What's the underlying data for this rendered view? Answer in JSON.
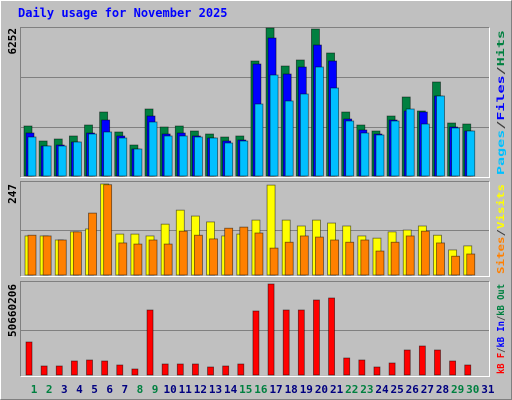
{
  "chart_data": {
    "type": "bar",
    "title": "Daily usage for November 2025",
    "title_color": "#0000ff",
    "categories": [
      "1",
      "2",
      "3",
      "4",
      "5",
      "6",
      "7",
      "8",
      "9",
      "10",
      "11",
      "12",
      "13",
      "14",
      "15",
      "16",
      "17",
      "18",
      "19",
      "20",
      "21",
      "22",
      "23",
      "24",
      "25",
      "26",
      "27",
      "28",
      "29",
      "30",
      "31"
    ],
    "label_colors": [
      "#008040",
      "#008040",
      "#000080",
      "#000080",
      "#000080",
      "#000080",
      "#000080",
      "#008040",
      "#008040",
      "#000080",
      "#000080",
      "#000080",
      "#000080",
      "#000080",
      "#008040",
      "#008040",
      "#000080",
      "#000080",
      "#000080",
      "#000080",
      "#000080",
      "#008040",
      "#008040",
      "#000080",
      "#000080",
      "#000080",
      "#000080",
      "#000080",
      "#008040",
      "#008040",
      "#000080"
    ],
    "legend_separator": "/",
    "grid": true,
    "panels": [
      {
        "ylim": [
          0,
          6252
        ],
        "yticks": [
          6252
        ],
        "series": [
          {
            "name": "Pages",
            "color": "#00c0ff",
            "values": [
              1647,
              1267,
              1267,
              1436,
              1774,
              1859,
              1605,
              1140,
              2281,
              1690,
              1690,
              1647,
              1605,
              1394,
              1478,
              3041,
              4266,
              3168,
              3464,
              4604,
              3717,
              2323,
              1816,
              1732,
              2323,
              2830,
              2196,
              3379,
              2028,
              1901,
              0
            ]
          },
          {
            "name": "Files",
            "color": "#0000ff",
            "values": [
              1816,
              1267,
              1309,
              1436,
              1816,
              2365,
              1690,
              1140,
              2534,
              1774,
              1816,
              1690,
              1605,
              1478,
              1521,
              4731,
              5829,
              4308,
              4604,
              5533,
              4858,
              2408,
              1943,
              1774,
              2365,
              2746,
              2703,
              3379,
              2070,
              1901,
              0
            ]
          },
          {
            "name": "Hits",
            "color": "#008040",
            "values": [
              2112,
              1478,
              1563,
              1690,
              2154,
              2703,
              1859,
              1309,
              2830,
              2070,
              2112,
              1901,
              1774,
              1647,
              1690,
              4858,
              6252,
              4646,
              4900,
              6209,
              5196,
              2703,
              2154,
              1901,
              2534,
              3337,
              2746,
              3971,
              2239,
              2196,
              0
            ]
          }
        ]
      },
      {
        "ylim": [
          0,
          247
        ],
        "yticks": [
          247
        ],
        "series": [
          {
            "name": "Sites",
            "color": "#ff8000",
            "values": [
              108,
              106,
              95,
              117,
              168,
              245,
              87,
              84,
              95,
              84,
              119,
              108,
              98,
              127,
              130,
              114,
              73,
              89,
              106,
              103,
              95,
              89,
              95,
              65,
              89,
              106,
              119,
              87,
              51,
              57,
              0
            ]
          },
          {
            "name": "Visits",
            "color": "#ffff00",
            "values": [
              106,
              106,
              95,
              117,
              125,
              247,
              111,
              111,
              106,
              138,
              176,
              160,
              144,
              106,
              111,
              149,
              244,
              149,
              133,
              149,
              141,
              133,
              106,
              100,
              117,
              122,
              133,
              108,
              68,
              79,
              0
            ]
          }
        ]
      },
      {
        "ylim": [
          0,
          50660206
        ],
        "yticks": [
          50660206
        ],
        "series": [
          {
            "name": "kB F",
            "color": "#ff0000",
            "values": [
              18371298,
              5010354,
              5010354,
              7793884,
              8350590,
              7793884,
              5567060,
              3340236,
              36185890,
              6123766,
              6123766,
              6123766,
              4453648,
              5010354,
              6123766,
              35629184,
              50660206,
              36185890,
              36185890,
              41752950,
              42866362,
              9464002,
              8350590,
              4453648,
              6680472,
              13917650,
              16144474,
              13917650,
              7793884,
              5567060,
              0
            ]
          },
          {
            "name": "kB In",
            "color": "#0000ff",
            "values": [
              0,
              0,
              0,
              0,
              0,
              0,
              0,
              0,
              0,
              0,
              0,
              0,
              0,
              0,
              0,
              0,
              0,
              0,
              0,
              0,
              0,
              0,
              0,
              0,
              0,
              0,
              0,
              0,
              0,
              0,
              0
            ]
          },
          {
            "name": "kB Out",
            "color": "#008040",
            "values": [
              0,
              0,
              0,
              0,
              0,
              0,
              0,
              0,
              0,
              0,
              0,
              0,
              0,
              0,
              0,
              0,
              0,
              0,
              0,
              0,
              0,
              0,
              0,
              0,
              0,
              0,
              0,
              0,
              0,
              0,
              0
            ]
          }
        ]
      }
    ]
  }
}
